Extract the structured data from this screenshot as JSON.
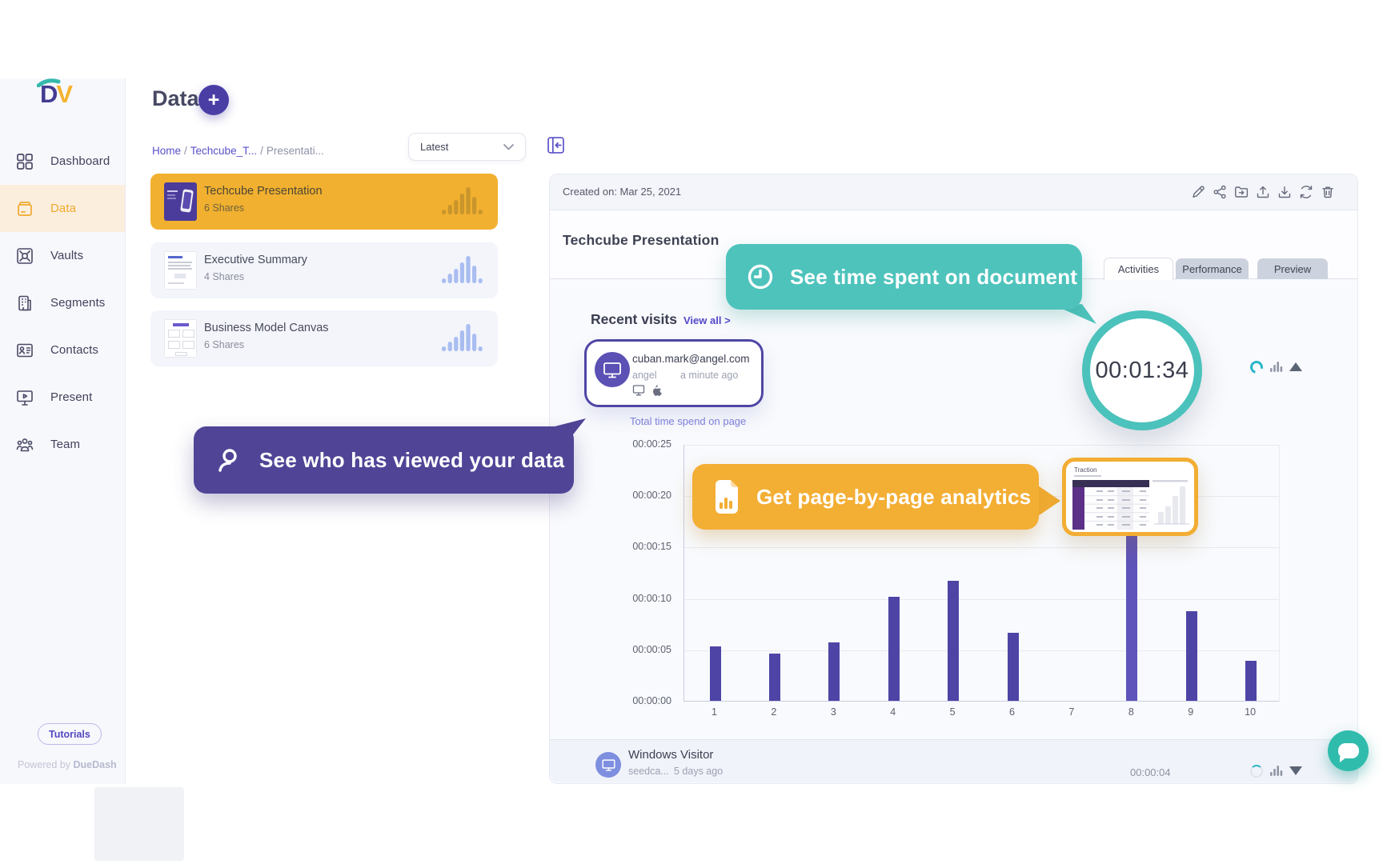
{
  "sidebar": {
    "logo": {
      "d": "D",
      "v": "V"
    },
    "items": [
      {
        "label": "Dashboard",
        "icon": "dashboard-icon",
        "active": false
      },
      {
        "label": "Data",
        "icon": "data-icon",
        "active": true
      },
      {
        "label": "Vaults",
        "icon": "vault-icon",
        "active": false
      },
      {
        "label": "Segments",
        "icon": "segments-icon",
        "active": false
      },
      {
        "label": "Contacts",
        "icon": "contacts-icon",
        "active": false
      },
      {
        "label": "Present",
        "icon": "present-icon",
        "active": false
      },
      {
        "label": "Team",
        "icon": "team-icon",
        "active": false
      }
    ],
    "tutorials_label": "Tutorials",
    "powered_prefix": "Powered by ",
    "powered_brand": "DueDash"
  },
  "list": {
    "page_title": "Data",
    "add_button": "+",
    "breadcrumb": {
      "items": [
        "Home",
        "Techcube_T...",
        "Presentati..."
      ],
      "separator": "/"
    },
    "filter_value": "Latest",
    "documents": [
      {
        "title": "Techcube Presentation",
        "shares": "6 Shares",
        "selected": true
      },
      {
        "title": "Executive Summary",
        "shares": "4 Shares",
        "selected": false
      },
      {
        "title": "Business Model Canvas",
        "shares": "6 Shares",
        "selected": false
      }
    ]
  },
  "detail": {
    "created_on": "Created on: Mar 25, 2021",
    "actions": [
      "edit-icon",
      "share-icon",
      "folder-move-icon",
      "upload-icon",
      "download-icon",
      "refresh-icon",
      "trash-icon"
    ],
    "title": "Techcube Presentation",
    "tabs": [
      {
        "label": "Activities",
        "active": true
      },
      {
        "label": "Performance",
        "active": false
      },
      {
        "label": "Preview",
        "active": false
      }
    ],
    "recent_visits_label": "Recent visits",
    "view_all_label": "View all >",
    "visitor": {
      "email": "cuban.mark@angel.com",
      "org": "angel",
      "time": "a minute ago"
    },
    "timer_value": "00:01:34",
    "bottom_visitor": {
      "name": "Windows Visitor",
      "org": "seedca...",
      "time": "5 days ago",
      "duration": "00:00:04"
    }
  },
  "callouts": {
    "time_doc": "See time spent on document",
    "who_viewed": "See who has viewed your data",
    "page_analytics": "Get page-by-page analytics"
  },
  "thumbnail_slide": {
    "title": "Traction"
  },
  "chart_data": {
    "type": "bar",
    "title": "Total time spend on page",
    "categories": [
      "1",
      "2",
      "3",
      "4",
      "5",
      "6",
      "7",
      "8",
      "9",
      "10"
    ],
    "values_seconds": [
      5.3,
      4.6,
      5.7,
      10.1,
      11.7,
      6.6,
      0,
      16.5,
      8.7,
      3.9
    ],
    "y_ticks": [
      {
        "seconds": 0,
        "label": "00:00:00"
      },
      {
        "seconds": 5,
        "label": "00:00:05"
      },
      {
        "seconds": 10,
        "label": "00:00:10"
      },
      {
        "seconds": 15,
        "label": "00:00:15"
      },
      {
        "seconds": 20,
        "label": "00:00:20"
      },
      {
        "seconds": 25,
        "label": "00:00:25"
      }
    ],
    "ylim": [
      0,
      25
    ],
    "grid": true,
    "bar_color": "#4e44a6",
    "highlight_bar_index": 7,
    "highlight_bar_color": "#5e54b9"
  },
  "colors": {
    "purple": "#4a3ea5",
    "teal": "#4ec3bc",
    "yellow": "#f3ae34",
    "active_nav": "#f0a92d",
    "link": "#5a50c8"
  }
}
